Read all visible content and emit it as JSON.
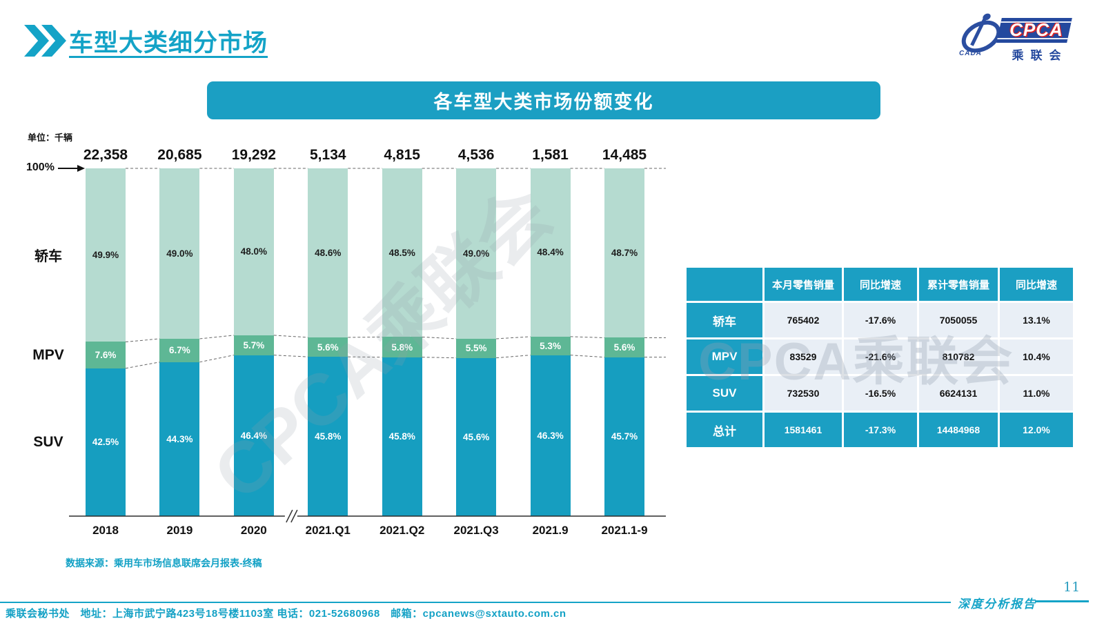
{
  "page": {
    "title": "车型大类细分市场",
    "banner": "各车型大类市场份额变化",
    "unit_label": "单位：千辆",
    "axis_100_label": "100%",
    "source_note": "数据来源：乘用车市场信息联席会月报表-终稿",
    "footer_contact": "乘联会秘书处　地址：上海市武宁路423号18号楼1103室 电话：021-52680968　邮箱：cpcanews@sxtauto.com.cn",
    "page_number": "11",
    "report_label": "深度分析报告",
    "watermark": "CPCA乘联会"
  },
  "logo": {
    "cpca": "CPCA",
    "cada": "CADA",
    "cn": "乘联会"
  },
  "colors": {
    "teal": "#169ec0",
    "banner_teal": "#1b9fc3",
    "title_teal": "#14a3c7",
    "mpv_green": "#5eb795",
    "sedan_green": "#b5dbd0",
    "table_row_bg": "#e9eff6",
    "logo_blue": "#24499e"
  },
  "chart_data": {
    "type": "bar",
    "subtype": "stacked-100pct-share",
    "title": "各车型大类市场份额变化",
    "unit": "千辆",
    "categories": [
      "2018",
      "2019",
      "2020",
      "2021.Q1",
      "2021.Q2",
      "2021.Q3",
      "2021.9",
      "2021.1-9"
    ],
    "totals": [
      "22,358",
      "20,685",
      "19,292",
      "5,134",
      "4,815",
      "4,536",
      "1,581",
      "14,485"
    ],
    "series": [
      {
        "name": "轿车",
        "values": [
          49.9,
          49.0,
          48.0,
          48.6,
          48.5,
          49.0,
          48.4,
          48.7
        ]
      },
      {
        "name": "MPV",
        "values": [
          7.6,
          6.7,
          5.7,
          5.6,
          5.8,
          5.5,
          5.3,
          5.6
        ]
      },
      {
        "name": "SUV",
        "values": [
          42.5,
          44.3,
          46.4,
          45.8,
          45.8,
          45.6,
          46.3,
          45.7
        ]
      }
    ],
    "ylim": [
      0,
      100
    ],
    "axis_break_after": "2020",
    "grid": false,
    "legend_position": "left-category-labels"
  },
  "table": {
    "headers": [
      "",
      "本月零售销量",
      "同比增速",
      "累计零售销量",
      "同比增速"
    ],
    "rows": [
      {
        "label": "轿车",
        "values": [
          "765402",
          "-17.6%",
          "7050055",
          "13.1%"
        ],
        "total": false
      },
      {
        "label": "MPV",
        "values": [
          "83529",
          "-21.6%",
          "810782",
          "10.4%"
        ],
        "total": false
      },
      {
        "label": "SUV",
        "values": [
          "732530",
          "-16.5%",
          "6624131",
          "11.0%"
        ],
        "total": false
      },
      {
        "label": "总计",
        "values": [
          "1581461",
          "-17.3%",
          "14484968",
          "12.0%"
        ],
        "total": true
      }
    ]
  }
}
